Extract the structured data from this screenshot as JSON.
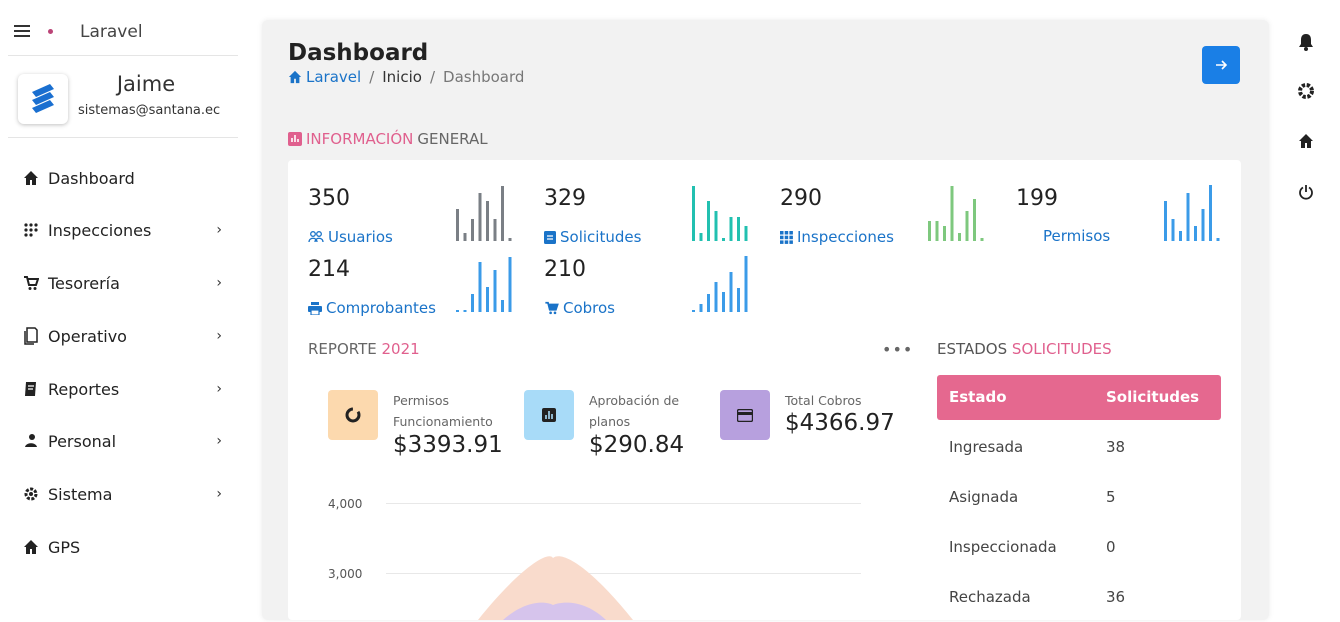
{
  "app": {
    "name": "Laravel"
  },
  "user": {
    "name": "Jaime",
    "email": "sistemas@santana.ec"
  },
  "nav": [
    {
      "label": "Dashboard",
      "icon": "home-icon",
      "chevron": false
    },
    {
      "label": "Inspecciones",
      "icon": "grid-dots-icon",
      "chevron": true
    },
    {
      "label": "Tesorería",
      "icon": "cart-icon",
      "chevron": true
    },
    {
      "label": "Operativo",
      "icon": "document-icon",
      "chevron": true
    },
    {
      "label": "Reportes",
      "icon": "receipt-icon",
      "chevron": true
    },
    {
      "label": "Personal",
      "icon": "person-icon",
      "chevron": true
    },
    {
      "label": "Sistema",
      "icon": "gear-icon",
      "chevron": true
    },
    {
      "label": "GPS",
      "icon": "home-icon",
      "chevron": false
    }
  ],
  "chevron_glyph": "›",
  "page": {
    "title": "Dashboard",
    "breadcrumb": {
      "home": "Laravel",
      "sep": "/",
      "middle": "Inicio",
      "current": "Dashboard"
    }
  },
  "info_section": {
    "title_accent": "INFORMACIÓN",
    "title_rest": "GENERAL"
  },
  "stats": [
    {
      "value": "350",
      "label": "Usuarios",
      "icon": "users-icon",
      "color": "#7a7f85",
      "bars": [
        32,
        8,
        22,
        48,
        40,
        22,
        55,
        3
      ]
    },
    {
      "value": "329",
      "label": "Solicitudes",
      "icon": "clipboard-icon",
      "color": "#22c0b0",
      "bars": [
        55,
        8,
        40,
        30,
        3,
        24,
        24,
        15
      ]
    },
    {
      "value": "290",
      "label": "Inspecciones",
      "icon": "grid-icon",
      "color": "#7ec87e",
      "bars": [
        20,
        20,
        15,
        55,
        8,
        30,
        42,
        3
      ]
    },
    {
      "value": "199",
      "label": "Permisos",
      "icon": "",
      "color": "#3b9be8",
      "bars": [
        40,
        22,
        10,
        48,
        15,
        32,
        56,
        3
      ]
    },
    {
      "value": "214",
      "label": "Comprobantes",
      "icon": "printer-icon",
      "color": "#3b9be8",
      "bars": [
        2,
        2,
        18,
        50,
        25,
        42,
        12,
        55
      ]
    },
    {
      "value": "210",
      "label": "Cobros",
      "icon": "cart-icon",
      "color": "#3b9be8",
      "bars": [
        2,
        8,
        18,
        30,
        20,
        40,
        24,
        56
      ]
    }
  ],
  "report": {
    "title": "REPORTE",
    "year": "2021",
    "menu": "•••"
  },
  "kpis": [
    {
      "label": "Permisos Funcionamiento",
      "value": "$3393.91",
      "icon": "donut-icon",
      "bg": "#fcd9ae"
    },
    {
      "label": "Aprobación de planos",
      "value": "$290.84",
      "icon": "bar-chart-icon",
      "bg": "#a8dbf8"
    },
    {
      "label": "Total Cobros",
      "value": "$4366.97",
      "icon": "card-icon",
      "bg": "#b7a0de"
    }
  ],
  "chart_data": {
    "type": "area",
    "yticks": [
      "4,000",
      "3,000"
    ],
    "ylim": [
      2000,
      4000
    ],
    "series_colors": [
      "#f8c6b0",
      "#c8b0e8"
    ]
  },
  "estados": {
    "title": "ESTADOS",
    "title_accent": "SOLICITUDES",
    "headers": [
      "Estado",
      "Solicitudes"
    ],
    "rows": [
      {
        "estado": "Ingresada",
        "count": "38"
      },
      {
        "estado": "Asignada",
        "count": "5"
      },
      {
        "estado": "Inspeccionada",
        "count": "0"
      },
      {
        "estado": "Rechazada",
        "count": "36"
      }
    ]
  }
}
